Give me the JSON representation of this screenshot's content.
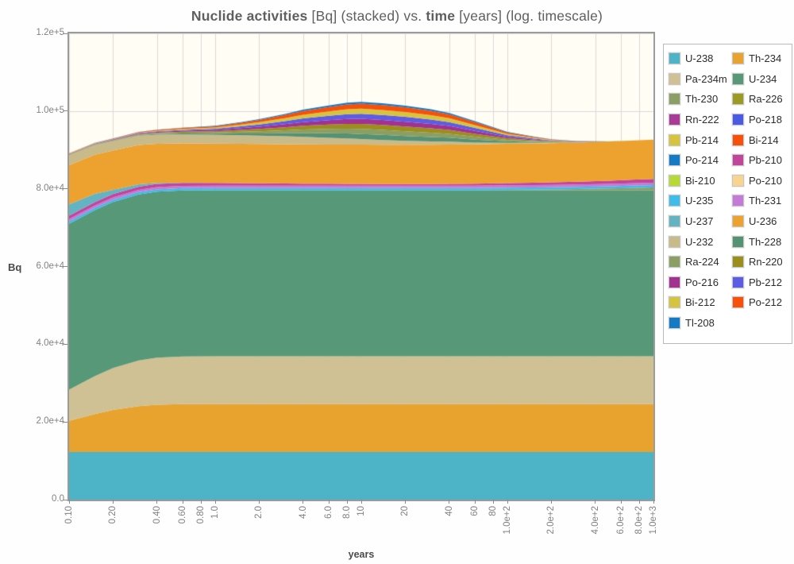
{
  "title": {
    "part1": "Nuclide activities",
    "part2": " [Bq] (stacked) vs. ",
    "part3": "time",
    "part4": " [years] (log. timescale)"
  },
  "chart_data": {
    "type": "area",
    "stacked": true,
    "x_scale": "log",
    "xlabel": "years",
    "ylabel": "Bq",
    "xlim": [
      0.1,
      1000
    ],
    "ylim": [
      0,
      120000
    ],
    "grid": true,
    "legend_position": "right",
    "colors": {
      "plot_bg": "#fffdf4",
      "grid": "#d9d9d9",
      "border": "#9b9b9b",
      "tick_text": "#828282",
      "title_text": "#5f5f5f"
    },
    "y_ticks": [
      {
        "label": "1.2e+5",
        "value": 120000
      },
      {
        "label": "1.0e+5",
        "value": 100000
      },
      {
        "label": "8.0e+4",
        "value": 80000
      },
      {
        "label": "6.0e+4",
        "value": 60000
      },
      {
        "label": "4.0e+4",
        "value": 40000
      },
      {
        "label": "2.0e+4",
        "value": 20000
      },
      {
        "label": "0.0",
        "value": 0
      }
    ],
    "x_ticks": [
      {
        "label": "0.10",
        "value": 0.1
      },
      {
        "label": "0.20",
        "value": 0.2
      },
      {
        "label": "0.40",
        "value": 0.4
      },
      {
        "label": "0.60",
        "value": 0.6
      },
      {
        "label": "0.80",
        "value": 0.8
      },
      {
        "label": "1.0",
        "value": 1
      },
      {
        "label": "2.0",
        "value": 2
      },
      {
        "label": "4.0",
        "value": 4
      },
      {
        "label": "6.0",
        "value": 6
      },
      {
        "label": "8.0",
        "value": 8
      },
      {
        "label": "10",
        "value": 10
      },
      {
        "label": "20",
        "value": 20
      },
      {
        "label": "40",
        "value": 40
      },
      {
        "label": "60",
        "value": 60
      },
      {
        "label": "80",
        "value": 80
      },
      {
        "label": "1.0e+2",
        "value": 100
      },
      {
        "label": "2.0e+2",
        "value": 200
      },
      {
        "label": "4.0e+2",
        "value": 400
      },
      {
        "label": "6.0e+2",
        "value": 600
      },
      {
        "label": "8.0e+2",
        "value": 800
      },
      {
        "label": "1.0e+3",
        "value": 1000
      }
    ],
    "x": [
      0.1,
      0.15,
      0.2,
      0.3,
      0.4,
      0.6,
      1,
      1.5,
      2,
      3,
      4,
      6,
      8,
      10,
      14,
      20,
      30,
      40,
      60,
      100,
      150,
      200,
      300,
      500,
      700,
      1000
    ],
    "series": [
      {
        "name": "U-238",
        "color": "#4db3c6",
        "values": [
          12270,
          12270,
          12270,
          12270,
          12270,
          12270,
          12270,
          12270,
          12270,
          12270,
          12270,
          12270,
          12270,
          12270,
          12270,
          12270,
          12270,
          12270,
          12270,
          12270,
          12270,
          12270,
          12270,
          12270,
          12270,
          12270
        ]
      },
      {
        "name": "Th-234",
        "color": "#e8a32e",
        "values": [
          8010,
          9770,
          10810,
          11790,
          12140,
          12300,
          12320,
          12320,
          12320,
          12320,
          12320,
          12320,
          12320,
          12320,
          12320,
          12320,
          12320,
          12320,
          12320,
          12320,
          12320,
          12320,
          12320,
          12320,
          12320,
          12320
        ]
      },
      {
        "name": "Pa-234m",
        "color": "#cfc193",
        "values": [
          8010,
          9770,
          10810,
          11790,
          12140,
          12300,
          12320,
          12320,
          12320,
          12320,
          12320,
          12320,
          12320,
          12320,
          12320,
          12320,
          12320,
          12320,
          12320,
          12320,
          12320,
          12320,
          12320,
          12320,
          12320,
          12320
        ]
      },
      {
        "name": "U-234",
        "color": "#579878",
        "values": [
          42700,
          42700,
          42700,
          42700,
          42700,
          42700,
          42700,
          42700,
          42700,
          42700,
          42700,
          42700,
          42700,
          42700,
          42700,
          42700,
          42700,
          42700,
          42700,
          42700,
          42700,
          42700,
          42700,
          42700,
          42700,
          42700
        ]
      },
      {
        "name": "Th-230",
        "color": "#8b9e63",
        "values": [
          0,
          0,
          0,
          0,
          0,
          0,
          0,
          0,
          0,
          0,
          0,
          0,
          0,
          0,
          0,
          0,
          0,
          0,
          0,
          100,
          150,
          200,
          300,
          450,
          600,
          750
        ]
      },
      {
        "name": "Ra-226",
        "color": "#9b9b24",
        "values": [
          0,
          0,
          0,
          0,
          0,
          0,
          0,
          0,
          0,
          0,
          0,
          0,
          0,
          0,
          0,
          0,
          0,
          0,
          0,
          0,
          0,
          0,
          0,
          0,
          0,
          0
        ]
      },
      {
        "name": "Rn-222",
        "color": "#a93a96",
        "values": [
          0,
          0,
          0,
          0,
          0,
          0,
          0,
          0,
          0,
          0,
          0,
          0,
          0,
          0,
          0,
          0,
          0,
          0,
          0,
          0,
          0,
          0,
          0,
          0,
          0,
          0
        ]
      },
      {
        "name": "Po-218",
        "color": "#4a5ae2",
        "values": [
          0,
          0,
          0,
          0,
          0,
          0,
          0,
          0,
          0,
          0,
          0,
          0,
          0,
          0,
          0,
          0,
          0,
          0,
          0,
          0,
          0,
          0,
          0,
          0,
          0,
          0
        ]
      },
      {
        "name": "Pb-214",
        "color": "#d7c43e",
        "values": [
          0,
          0,
          0,
          0,
          0,
          0,
          0,
          0,
          0,
          0,
          0,
          0,
          0,
          0,
          0,
          0,
          0,
          0,
          0,
          0,
          0,
          0,
          0,
          0,
          0,
          0
        ]
      },
      {
        "name": "Bi-214",
        "color": "#f6500a",
        "values": [
          0,
          0,
          0,
          0,
          0,
          0,
          0,
          0,
          0,
          0,
          0,
          0,
          0,
          0,
          0,
          0,
          0,
          0,
          0,
          0,
          0,
          0,
          0,
          0,
          0,
          0
        ]
      },
      {
        "name": "Po-214",
        "color": "#137bc4",
        "values": [
          0,
          0,
          0,
          0,
          0,
          0,
          0,
          0,
          0,
          0,
          0,
          0,
          0,
          0,
          0,
          0,
          0,
          0,
          0,
          0,
          0,
          0,
          0,
          0,
          0,
          0
        ]
      },
      {
        "name": "Bi-210",
        "color": "#b8d838",
        "values": [
          0,
          0,
          0,
          0,
          0,
          0,
          0,
          0,
          0,
          0,
          0,
          0,
          0,
          0,
          0,
          0,
          0,
          0,
          0,
          0,
          0,
          0,
          0,
          0,
          0,
          0
        ]
      },
      {
        "name": "Po-210",
        "color": "#f8d491",
        "values": [
          0,
          0,
          0,
          0,
          0,
          0,
          0,
          0,
          0,
          0,
          0,
          0,
          0,
          0,
          0,
          0,
          0,
          0,
          0,
          0,
          0,
          0,
          0,
          0,
          0,
          0
        ]
      },
      {
        "name": "U-235",
        "color": "#3fbce8",
        "values": [
          600,
          600,
          600,
          600,
          600,
          600,
          600,
          600,
          600,
          600,
          600,
          600,
          600,
          600,
          600,
          600,
          600,
          600,
          600,
          600,
          600,
          600,
          600,
          600,
          600,
          600
        ]
      },
      {
        "name": "Th-231",
        "color": "#c47ad6",
        "values": [
          600,
          600,
          600,
          600,
          600,
          600,
          600,
          600,
          600,
          600,
          600,
          600,
          600,
          600,
          600,
          600,
          600,
          600,
          600,
          600,
          600,
          600,
          600,
          600,
          600,
          600
        ]
      },
      {
        "name": "Pb-210",
        "color": "#c2459c",
        "values": [
          900,
          870,
          850,
          820,
          800,
          750,
          700,
          650,
          600,
          550,
          500,
          480,
          460,
          450,
          420,
          400,
          420,
          450,
          500,
          550,
          600,
          650,
          700,
          800,
          900,
          1000
        ]
      },
      {
        "name": "U-237",
        "color": "#64b3c3",
        "values": [
          2900,
          2100,
          1100,
          600,
          250,
          60,
          0,
          0,
          0,
          0,
          0,
          0,
          0,
          0,
          0,
          0,
          0,
          0,
          0,
          0,
          0,
          0,
          0,
          0,
          0,
          0
        ]
      },
      {
        "name": "U-236",
        "color": "#eda22f",
        "values": [
          10100,
          10100,
          10100,
          10100,
          10100,
          10100,
          10100,
          10100,
          10100,
          10100,
          10100,
          10100,
          10100,
          10100,
          10100,
          10100,
          10100,
          10100,
          10100,
          10100,
          10100,
          10100,
          10100,
          10100,
          10100,
          10100
        ]
      },
      {
        "name": "U-232",
        "color": "#c9ba8a",
        "values": [
          2600,
          2500,
          2450,
          2400,
          2350,
          2300,
          2250,
          2200,
          2150,
          2050,
          1950,
          1750,
          1600,
          1450,
          1250,
          1050,
          850,
          800,
          500,
          300,
          180,
          110,
          40,
          10,
          0,
          0
        ]
      },
      {
        "name": "Th-228",
        "color": "#559173",
        "values": [
          60,
          75,
          90,
          130,
          170,
          240,
          320,
          460,
          580,
          780,
          950,
          1130,
          1250,
          1300,
          1280,
          1230,
          1130,
          1000,
          750,
          380,
          220,
          120,
          45,
          10,
          0,
          0
        ]
      },
      {
        "name": "Ra-224",
        "color": "#8b9e63",
        "values": [
          60,
          75,
          90,
          130,
          170,
          240,
          320,
          460,
          580,
          780,
          950,
          1130,
          1250,
          1300,
          1280,
          1230,
          1130,
          1000,
          750,
          380,
          220,
          120,
          45,
          10,
          0,
          0
        ]
      },
      {
        "name": "Rn-220",
        "color": "#9c8e1d",
        "values": [
          60,
          75,
          90,
          130,
          170,
          240,
          320,
          460,
          580,
          780,
          950,
          1130,
          1250,
          1300,
          1280,
          1230,
          1130,
          1000,
          750,
          380,
          220,
          120,
          45,
          10,
          0,
          0
        ]
      },
      {
        "name": "Po-216",
        "color": "#a2318f",
        "values": [
          60,
          75,
          90,
          130,
          170,
          240,
          320,
          460,
          580,
          780,
          950,
          1130,
          1250,
          1300,
          1280,
          1230,
          1130,
          1000,
          750,
          380,
          220,
          120,
          45,
          10,
          0,
          0
        ]
      },
      {
        "name": "Pb-212",
        "color": "#5c5ce4",
        "values": [
          60,
          75,
          90,
          130,
          170,
          240,
          320,
          460,
          580,
          780,
          950,
          1130,
          1250,
          1300,
          1280,
          1230,
          1130,
          1000,
          750,
          380,
          220,
          120,
          45,
          10,
          0,
          0
        ]
      },
      {
        "name": "Bi-212",
        "color": "#d7c43e",
        "values": [
          60,
          75,
          90,
          130,
          170,
          240,
          320,
          460,
          580,
          780,
          950,
          1130,
          1250,
          1300,
          1280,
          1230,
          1130,
          1000,
          750,
          380,
          220,
          120,
          45,
          10,
          0,
          0
        ]
      },
      {
        "name": "Po-212",
        "color": "#f6500a",
        "values": [
          60,
          75,
          90,
          130,
          170,
          240,
          320,
          460,
          580,
          780,
          950,
          1130,
          1250,
          1300,
          1280,
          1230,
          1130,
          1000,
          750,
          380,
          220,
          120,
          45,
          10,
          0,
          0
        ]
      },
      {
        "name": "Tl-208",
        "color": "#137bc4",
        "values": [
          22,
          27,
          32,
          47,
          61,
          86,
          115,
          166,
          209,
          281,
          342,
          407,
          450,
          468,
          461,
          443,
          407,
          360,
          270,
          137,
          79,
          43,
          16,
          4,
          0,
          0
        ]
      }
    ]
  },
  "legend": {
    "items": [
      {
        "label": "U-238",
        "color": "#4db3c6"
      },
      {
        "label": "Th-234",
        "color": "#e8a32e"
      },
      {
        "label": "Pa-234m",
        "color": "#cfc193"
      },
      {
        "label": "U-234",
        "color": "#579878"
      },
      {
        "label": "Th-230",
        "color": "#8b9e63"
      },
      {
        "label": "Ra-226",
        "color": "#9b9b24"
      },
      {
        "label": "Rn-222",
        "color": "#a93a96"
      },
      {
        "label": "Po-218",
        "color": "#4a5ae2"
      },
      {
        "label": "Pb-214",
        "color": "#d7c43e"
      },
      {
        "label": "Bi-214",
        "color": "#f6500a"
      },
      {
        "label": "Po-214",
        "color": "#137bc4"
      },
      {
        "label": "Pb-210",
        "color": "#c2459c"
      },
      {
        "label": "Bi-210",
        "color": "#b8d838"
      },
      {
        "label": "Po-210",
        "color": "#f8d491"
      },
      {
        "label": "U-235",
        "color": "#3fbce8"
      },
      {
        "label": "Th-231",
        "color": "#c47ad6"
      },
      {
        "label": "U-237",
        "color": "#64b3c3"
      },
      {
        "label": "U-236",
        "color": "#eda22f"
      },
      {
        "label": "U-232",
        "color": "#c9ba8a"
      },
      {
        "label": "Th-228",
        "color": "#559173"
      },
      {
        "label": "Ra-224",
        "color": "#8b9e63"
      },
      {
        "label": "Rn-220",
        "color": "#9c8e1d"
      },
      {
        "label": "Po-216",
        "color": "#a2318f"
      },
      {
        "label": "Pb-212",
        "color": "#5c5ce4"
      },
      {
        "label": "Bi-212",
        "color": "#d7c43e"
      },
      {
        "label": "Po-212",
        "color": "#f6500a"
      },
      {
        "label": "Tl-208",
        "color": "#137bc4"
      }
    ]
  }
}
